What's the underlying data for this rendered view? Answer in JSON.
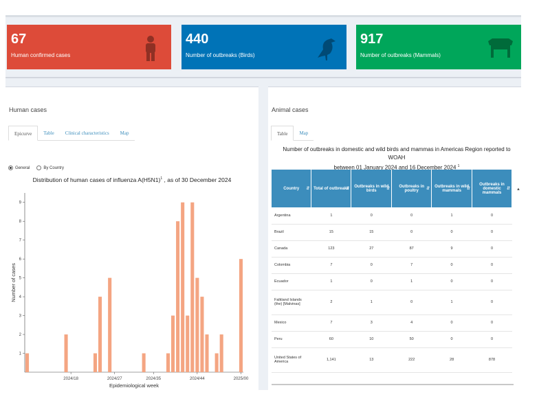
{
  "colors": {
    "red": "#dd4b39",
    "blue": "#0073b7",
    "green": "#00a65a",
    "bar": "#f4a582",
    "table_header": "#3c8dbc"
  },
  "infoboxes": [
    {
      "value": "67",
      "label": "Human confirmed cases",
      "icon": "person-icon"
    },
    {
      "value": "440",
      "label": "Number of outbreaks (Birds)",
      "icon": "bird-icon"
    },
    {
      "value": "917",
      "label": "Number of outbreaks (Mammals)",
      "icon": "cow-icon"
    }
  ],
  "human": {
    "title": "Human cases",
    "tabs": [
      "Epicurve",
      "Table",
      "Clinical characteristics",
      "Map"
    ],
    "radio": {
      "general": "General",
      "by_country": "By Country"
    },
    "chart_title": "Distribution of human cases of influenza A(H5N1)",
    "chart_title_sup": "1",
    "chart_title_suffix": " , as of 30 December 2024"
  },
  "chart_data": {
    "type": "bar",
    "title": "Distribution of human cases of influenza A(H5N1)1 , as of 30 December 2024",
    "xlabel": "Epidemiological week",
    "ylabel": "Number of cases",
    "ylim": [
      0,
      9.5
    ],
    "yticks": [
      1,
      2,
      3,
      4,
      5,
      6,
      7,
      8,
      9
    ],
    "xtick_labels": [
      "2024/18",
      "2024/27",
      "2024/35",
      "2024/44",
      "2025/00"
    ],
    "x": [
      "2024/09",
      "2024/10",
      "2024/11",
      "2024/12",
      "2024/13",
      "2024/14",
      "2024/15",
      "2024/16",
      "2024/17",
      "2024/18",
      "2024/19",
      "2024/20",
      "2024/21",
      "2024/22",
      "2024/23",
      "2024/24",
      "2024/25",
      "2024/26",
      "2024/27",
      "2024/28",
      "2024/29",
      "2024/30",
      "2024/31",
      "2024/32",
      "2024/33",
      "2024/34",
      "2024/35",
      "2024/36",
      "2024/37",
      "2024/38",
      "2024/39",
      "2024/40",
      "2024/41",
      "2024/42",
      "2024/43",
      "2024/44",
      "2024/45",
      "2024/46",
      "2024/47",
      "2024/48",
      "2024/49",
      "2024/50",
      "2024/51",
      "2024/52",
      "2025/00"
    ],
    "values": [
      1,
      0,
      0,
      0,
      0,
      0,
      0,
      0,
      2,
      0,
      0,
      0,
      0,
      0,
      1,
      4,
      0,
      5,
      0,
      0,
      0,
      0,
      0,
      0,
      1,
      0,
      0,
      0,
      0,
      1,
      3,
      8,
      9,
      3,
      9,
      5,
      4,
      2,
      0,
      1,
      2,
      0,
      0,
      0,
      6
    ],
    "grid": false
  },
  "animal": {
    "title": "Animal cases",
    "tabs": [
      "Table",
      "Map"
    ],
    "table_title_line1": "Number of outbreaks in domestic and wild birds and mammas in Americas Region reported to WOAH",
    "table_title_line2": "between 01 January 2024 and 16 December 2024",
    "table_title_sup": "1",
    "columns": [
      "Country",
      "Total of outbreaks",
      "Outbreaks in wild birds",
      "Outbreaks in poultry",
      "Outbreaks in wild mammals",
      "Outbreaks in domestic mammals"
    ],
    "rows": [
      [
        "Argentina",
        "1",
        "0",
        "0",
        "1",
        "0"
      ],
      [
        "Brazil",
        "15",
        "15",
        "0",
        "0",
        "0"
      ],
      [
        "Canada",
        "123",
        "27",
        "87",
        "9",
        "0"
      ],
      [
        "Colombia",
        "7",
        "0",
        "7",
        "0",
        "0"
      ],
      [
        "Ecuador",
        "1",
        "0",
        "1",
        "0",
        "0"
      ],
      [
        "Falkland Islands (the) [Malvinas]",
        "2",
        "1",
        "0",
        "1",
        "0"
      ],
      [
        "Mexico",
        "7",
        "3",
        "4",
        "0",
        "0"
      ],
      [
        "Peru",
        "60",
        "10",
        "50",
        "0",
        "0"
      ],
      [
        "United States of America",
        "1,141",
        "13",
        "222",
        "28",
        "878"
      ]
    ]
  }
}
